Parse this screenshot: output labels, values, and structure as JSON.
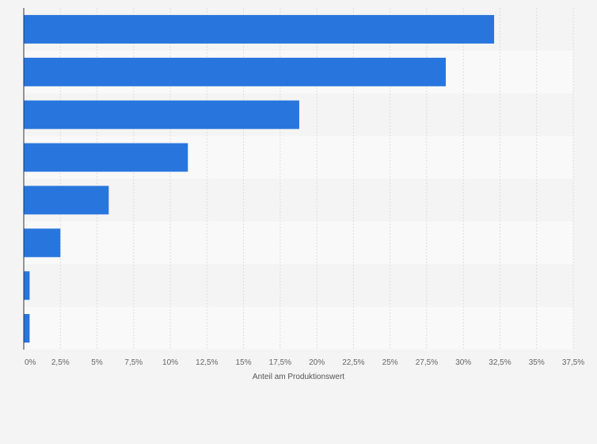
{
  "chart_data": {
    "type": "bar",
    "orientation": "horizontal",
    "title": "",
    "xlabel": "Anteil am Produktionswert",
    "ylabel": "",
    "xlim": [
      0,
      37.5
    ],
    "x_ticks": [
      0,
      2.5,
      5,
      7.5,
      10,
      12.5,
      15,
      17.5,
      20,
      22.5,
      25,
      27.5,
      30,
      32.5,
      35,
      37.5
    ],
    "x_tick_labels": [
      "0%",
      "2,5%",
      "5%",
      "7,5%",
      "10%",
      "12,5%",
      "15%",
      "17,5%",
      "20%",
      "22,5%",
      "25%",
      "27,5%",
      "30%",
      "32,5%",
      "35%",
      "37,5%"
    ],
    "categories": [
      "",
      "",
      "",
      "",
      "",
      "",
      "",
      ""
    ],
    "values": [
      32.1,
      28.8,
      18.8,
      11.2,
      5.8,
      2.5,
      0.4,
      0.4
    ],
    "unit": "%",
    "grid": true,
    "legend": "none",
    "colors": {
      "bar": "#2876dd",
      "background": "#f4f4f4",
      "band_alt": "#f9f9f9",
      "grid": "#dddddd",
      "axis": "#333333"
    }
  }
}
